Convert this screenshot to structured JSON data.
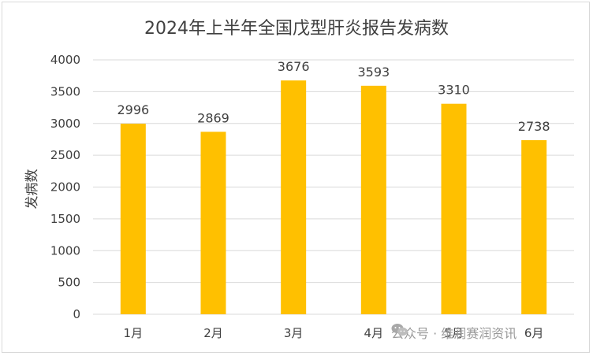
{
  "chart_data": {
    "type": "bar",
    "title": "2024年上半年全国戊型肝炎报告发病数",
    "xlabel": "",
    "ylabel": "发病数",
    "categories": [
      "1月",
      "2月",
      "3月",
      "4月",
      "5月",
      "6月"
    ],
    "values": [
      2996,
      2869,
      3676,
      3593,
      3310,
      2738
    ],
    "ylim": [
      0,
      4000
    ],
    "yticks": [
      0,
      500,
      1000,
      1500,
      2000,
      2500,
      3000,
      3500,
      4000
    ],
    "grid": true,
    "legend": "none",
    "bar_color": "#FFC000",
    "grid_color": "#d9d9d9"
  },
  "watermark": {
    "text": "公众号 · 维润赛润资讯",
    "icon": "wechat-icon"
  }
}
